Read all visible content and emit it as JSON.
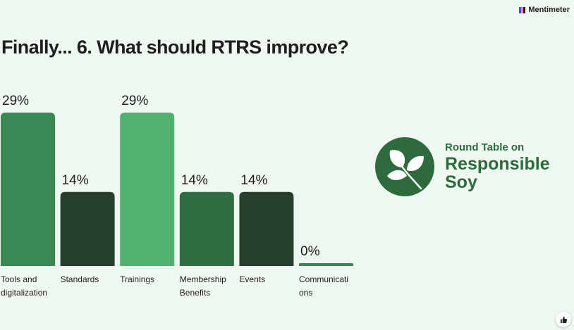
{
  "brand": {
    "name": "Mentimeter"
  },
  "colors": {
    "background": "#eef8f1",
    "bars": [
      "#3a8955",
      "#263e2c",
      "#52b070",
      "#2f6e42",
      "#263e2c",
      "#3a8955"
    ],
    "logo": "#2e6b3c"
  },
  "chart_data": {
    "type": "bar",
    "title": "Finally... 6. What should RTRS improve?",
    "categories": [
      [
        "Tools and",
        "digitalization"
      ],
      [
        "Standards"
      ],
      [
        "Trainings"
      ],
      [
        "Membership",
        "Benefits"
      ],
      [
        "Events"
      ],
      [
        "Communicati",
        "ons"
      ]
    ],
    "values": [
      29,
      14,
      29,
      14,
      14,
      0
    ],
    "value_labels": [
      "29%",
      "14%",
      "29%",
      "14%",
      "14%",
      "0%"
    ],
    "unit": "%",
    "ylim": [
      0,
      29
    ],
    "grid": false
  },
  "logo": {
    "line1": "Round Table on",
    "line2": "Responsible",
    "line3": "Soy",
    "icon": "leaves-icon"
  },
  "reaction_icon": "thumbs-up-icon"
}
